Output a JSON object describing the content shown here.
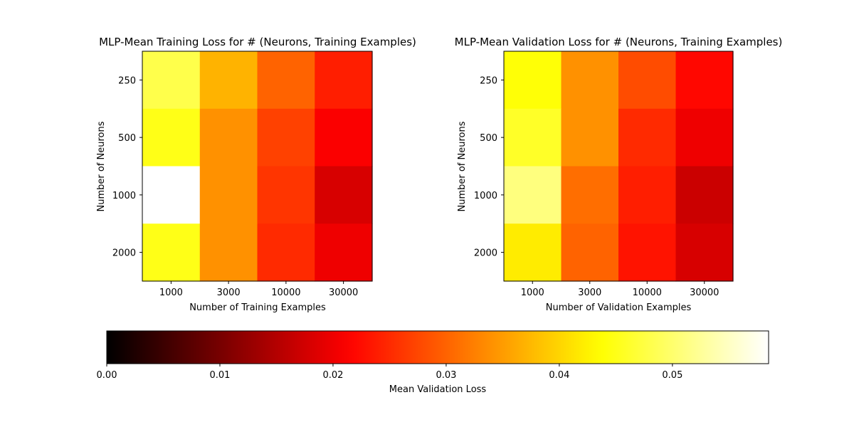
{
  "chart_data": [
    {
      "type": "heatmap",
      "title": "MLP-Mean Training Loss for # (Neurons, Training Examples)",
      "xlabel": "Number of Training Examples",
      "ylabel": "Number of Neurons",
      "x_categories": [
        "1000",
        "3000",
        "10000",
        "30000"
      ],
      "y_categories": [
        "250",
        "500",
        "1000",
        "2000"
      ],
      "values": [
        [
          0.048,
          0.037,
          0.03,
          0.024
        ],
        [
          0.045,
          0.034,
          0.027,
          0.021
        ],
        [
          0.059,
          0.034,
          0.026,
          0.018
        ],
        [
          0.045,
          0.034,
          0.025,
          0.02
        ]
      ],
      "grid": false
    },
    {
      "type": "heatmap",
      "title": "MLP-Mean Validation Loss for # (Neurons, Training Examples)",
      "xlabel": "Number of Validation Examples",
      "ylabel": "Number of Neurons",
      "x_categories": [
        "1000",
        "3000",
        "10000",
        "30000"
      ],
      "y_categories": [
        "250",
        "500",
        "1000",
        "2000"
      ],
      "values": [
        [
          0.044,
          0.034,
          0.028,
          0.022
        ],
        [
          0.046,
          0.034,
          0.025,
          0.02
        ],
        [
          0.051,
          0.031,
          0.024,
          0.017
        ],
        [
          0.042,
          0.03,
          0.023,
          0.018
        ]
      ],
      "grid": false
    }
  ],
  "colorbar": {
    "label": "Mean Validation Loss",
    "colormap": "hot",
    "range": [
      0,
      0.0585
    ],
    "ticks": [
      0.0,
      0.01,
      0.02,
      0.03,
      0.04,
      0.05
    ],
    "tick_labels": [
      "0.00",
      "0.01",
      "0.02",
      "0.03",
      "0.04",
      "0.05"
    ],
    "orientation": "horizontal"
  }
}
